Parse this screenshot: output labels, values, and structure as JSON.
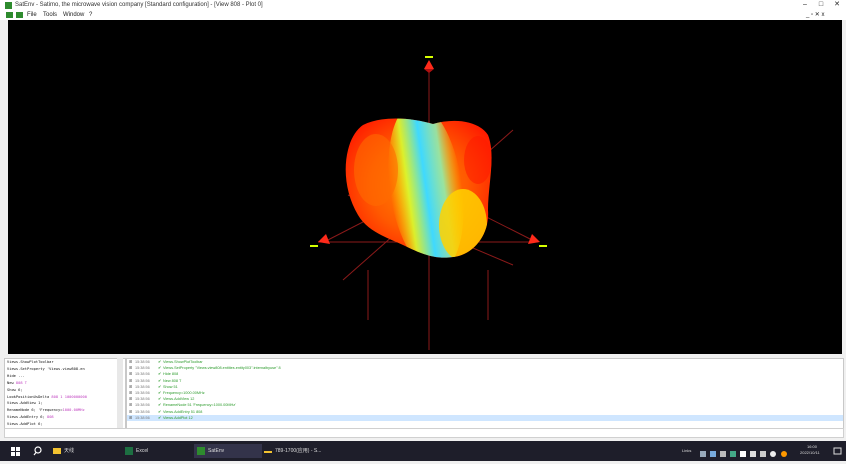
{
  "window": {
    "title": "SatEnv - Satimo, the microwave vision company  [Standard configuration] - [View 808 - Plot 0]",
    "minimize_glyph": "–",
    "maximize_glyph": "□",
    "close_glyph": "✕"
  },
  "menu": {
    "items": [
      "File",
      "Tools",
      "Window",
      "?"
    ],
    "mdi_controls": "_ ▫ ✕ x"
  },
  "viewport": {
    "background": "#000000",
    "gridline_color": "#8b1a1a",
    "marker_color": "#ff2a1a",
    "pattern_colors": [
      "#ff1a00",
      "#ff8800",
      "#ffe600",
      "#3fd9ff"
    ]
  },
  "command_log": {
    "lines": [
      {
        "text": "Views.ShowPlotToolbar",
        "num": ""
      },
      {
        "text": "Views.SetProperty 'Views.view808.en",
        "num": ""
      },
      {
        "text": "Hide ...",
        "num": ""
      },
      {
        "text": "New ",
        "num": "808 T"
      },
      {
        "text": "Show 6;",
        "num": ""
      },
      {
        "text": "LookPositionUsDelta ",
        "num": "808 1 1000000000"
      },
      {
        "text": "Views.AddView 1;",
        "num": ""
      },
      {
        "text": "RenameNode 6; 'Frequency=",
        "num": "1000.00MHz"
      },
      {
        "text": "Views.AddEntry 6; ",
        "num": "808"
      },
      {
        "text": "Views.AddPlot 6;",
        "num": ""
      }
    ]
  },
  "history": {
    "rows": [
      {
        "time": "15:38:56",
        "text": "Views.ShowPlotToolbar"
      },
      {
        "time": "15:38:56",
        "text": "Views.SetProperty \"Views.view808.entities.entity003\".internalbyuse\" 8"
      },
      {
        "time": "15:38:56",
        "text": "Hide 808"
      },
      {
        "time": "15:38:56",
        "text": "New 808 T"
      },
      {
        "time": "15:38:56",
        "text": "Show 51"
      },
      {
        "time": "15:38:56",
        "text": "Frequency=1000.00MHz"
      },
      {
        "time": "15:38:56",
        "text": "Views.AddView 12"
      },
      {
        "time": "15:38:56",
        "text": "RenameNode 51 'Frequency=1000.00MHz'"
      },
      {
        "time": "15:38:56",
        "text": "Views.AddEntry 51 808"
      },
      {
        "time": "15:38:56",
        "text": "Views.AddPlot 12"
      }
    ],
    "selected_index": 9
  },
  "taskbar": {
    "background": "#1e1e2a",
    "items": [
      {
        "label": "",
        "icon": "windows-start-icon"
      },
      {
        "label": "",
        "icon": "search-icon"
      },
      {
        "label": "天线",
        "icon": "folder-icon"
      },
      {
        "label": "Excel",
        "icon": "excel-icon"
      },
      {
        "label": "SatEnv",
        "icon": "satenv-icon"
      },
      {
        "label": "789-1700(应用) - S...",
        "icon": "document-icon"
      }
    ],
    "tray_text": "Links",
    "clock_time": "16:00",
    "clock_date": "2022/10/11",
    "notification_icon": "notification-icon"
  }
}
